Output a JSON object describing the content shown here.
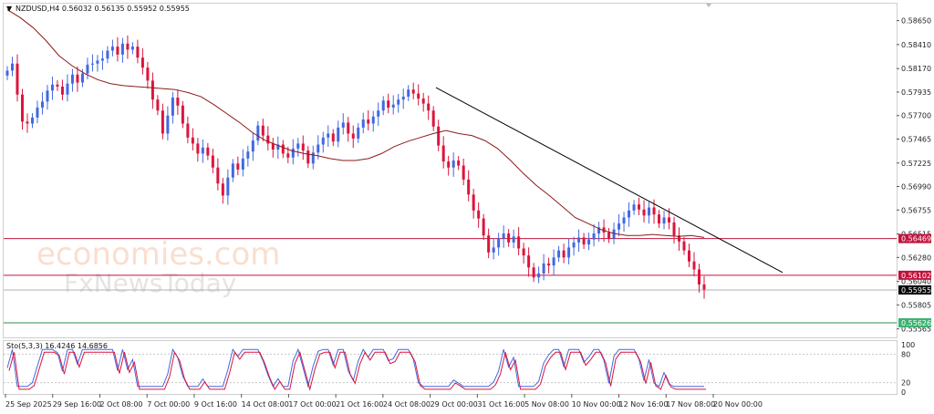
{
  "header": {
    "symbol_line": "NZDUSD,H4  0.56032 0.56135 0.55952 0.55955",
    "indicator_line": "Sto(5,3,3) 16.4246 14.6856"
  },
  "watermark": {
    "line1": "economies.com",
    "line2": "FxNewsToday"
  },
  "colors": {
    "bull": "#4169e1",
    "bear": "#dc143c",
    "ma": "#8b1a1a",
    "trend": "#000000",
    "support": "#c0143c",
    "green_line": "#2e8b57",
    "current": "#000000",
    "stoch_main": "#4169e1",
    "stoch_signal": "#dc143c"
  },
  "chart_data": [
    {
      "type": "candlestick",
      "title": "NZDUSD,H4",
      "ohlc_header": {
        "open": 0.56032,
        "high": 0.56135,
        "low": 0.55952,
        "close": 0.55955
      },
      "ylim": [
        0.5548,
        0.5882
      ],
      "y_ticks": [
        "0.58650",
        "0.58410",
        "0.58170",
        "0.57935",
        "0.57700",
        "0.57465",
        "0.57225",
        "0.56990",
        "0.56755",
        "0.56515",
        "0.56280",
        "0.56040",
        "0.55805",
        "0.55565"
      ],
      "x_tick_labels": [
        "25 Sep 2025",
        "29 Sep 16:00",
        "2 Oct 08:00",
        "7 Oct 00:00",
        "9 Oct 16:00",
        "14 Oct 08:00",
        "17 Oct 00:00",
        "21 Oct 16:00",
        "24 Oct 08:00",
        "29 Oct 00:00",
        "31 Oct 16:00",
        "5 Nov 08:00",
        "10 Nov 00:00",
        "12 Nov 16:00",
        "17 Nov 08:00",
        "20 Nov 00:00"
      ],
      "close_series": [
        0.5815,
        0.5822,
        0.5791,
        0.5764,
        0.5762,
        0.5768,
        0.5778,
        0.5784,
        0.5795,
        0.5801,
        0.5799,
        0.5791,
        0.5802,
        0.5811,
        0.5803,
        0.5812,
        0.5821,
        0.5822,
        0.5825,
        0.5827,
        0.5835,
        0.5839,
        0.5831,
        0.5842,
        0.5836,
        0.5839,
        0.5828,
        0.5818,
        0.5805,
        0.5786,
        0.5775,
        0.5752,
        0.577,
        0.5788,
        0.578,
        0.5762,
        0.5748,
        0.5742,
        0.5732,
        0.5738,
        0.573,
        0.5718,
        0.5702,
        0.569,
        0.5708,
        0.5722,
        0.5716,
        0.5727,
        0.5734,
        0.5745,
        0.576,
        0.575,
        0.5742,
        0.5736,
        0.5741,
        0.5732,
        0.5728,
        0.5737,
        0.5742,
        0.5735,
        0.5722,
        0.5733,
        0.5741,
        0.5748,
        0.5752,
        0.5744,
        0.5758,
        0.5763,
        0.5752,
        0.5747,
        0.5758,
        0.5766,
        0.5762,
        0.5769,
        0.5775,
        0.5785,
        0.5778,
        0.5781,
        0.5786,
        0.5789,
        0.5796,
        0.5792,
        0.5787,
        0.5782,
        0.5775,
        0.5759,
        0.574,
        0.5724,
        0.5718,
        0.5725,
        0.572,
        0.5706,
        0.5691,
        0.5675,
        0.5667,
        0.565,
        0.5633,
        0.5638,
        0.5647,
        0.5652,
        0.5643,
        0.5649,
        0.5637,
        0.563,
        0.5618,
        0.5608,
        0.5612,
        0.5622,
        0.562,
        0.5628,
        0.5635,
        0.5628,
        0.5638,
        0.5643,
        0.5648,
        0.5641,
        0.5646,
        0.5652,
        0.5658,
        0.5653,
        0.5647,
        0.5656,
        0.5662,
        0.5668,
        0.5675,
        0.5681,
        0.5676,
        0.567,
        0.5678,
        0.5671,
        0.5662,
        0.5668,
        0.5663,
        0.565,
        0.5644,
        0.5635,
        0.5624,
        0.5616,
        0.5601,
        0.5596
      ],
      "ma_series": [
        0.5876,
        0.5868,
        0.5858,
        0.5845,
        0.583,
        0.582,
        0.5812,
        0.5806,
        0.5802,
        0.58,
        0.5799,
        0.5798,
        0.5797,
        0.5796,
        0.5793,
        0.5789,
        0.5781,
        0.5772,
        0.5763,
        0.5753,
        0.5745,
        0.574,
        0.5735,
        0.5732,
        0.573,
        0.5727,
        0.5725,
        0.5725,
        0.5727,
        0.5732,
        0.5739,
        0.5744,
        0.5748,
        0.5752,
        0.5755,
        0.5752,
        0.575,
        0.5745,
        0.5737,
        0.5725,
        0.5712,
        0.57,
        0.569,
        0.5679,
        0.5668,
        0.5662,
        0.5656,
        0.5652,
        0.565,
        0.565,
        0.5651,
        0.565,
        0.5649,
        0.565,
        0.5648
      ],
      "support_levels": [
        0.56469,
        0.56102
      ],
      "price_labels": [
        "0.56469",
        "0.56102",
        "0.55955",
        "0.55626"
      ],
      "current_price": 0.55955,
      "green_level": 0.55626,
      "trendline": {
        "start": 0.5798,
        "end": 0.5613
      }
    },
    {
      "type": "line",
      "title": "Sto(5,3,3)",
      "ylim": [
        0,
        100
      ],
      "y_ticks": [
        "100",
        "80",
        "20",
        "0"
      ],
      "levels": [
        80,
        20
      ],
      "series": [
        {
          "name": "main",
          "values": [
            16.4246
          ]
        },
        {
          "name": "signal",
          "values": [
            14.6856
          ]
        }
      ]
    }
  ]
}
